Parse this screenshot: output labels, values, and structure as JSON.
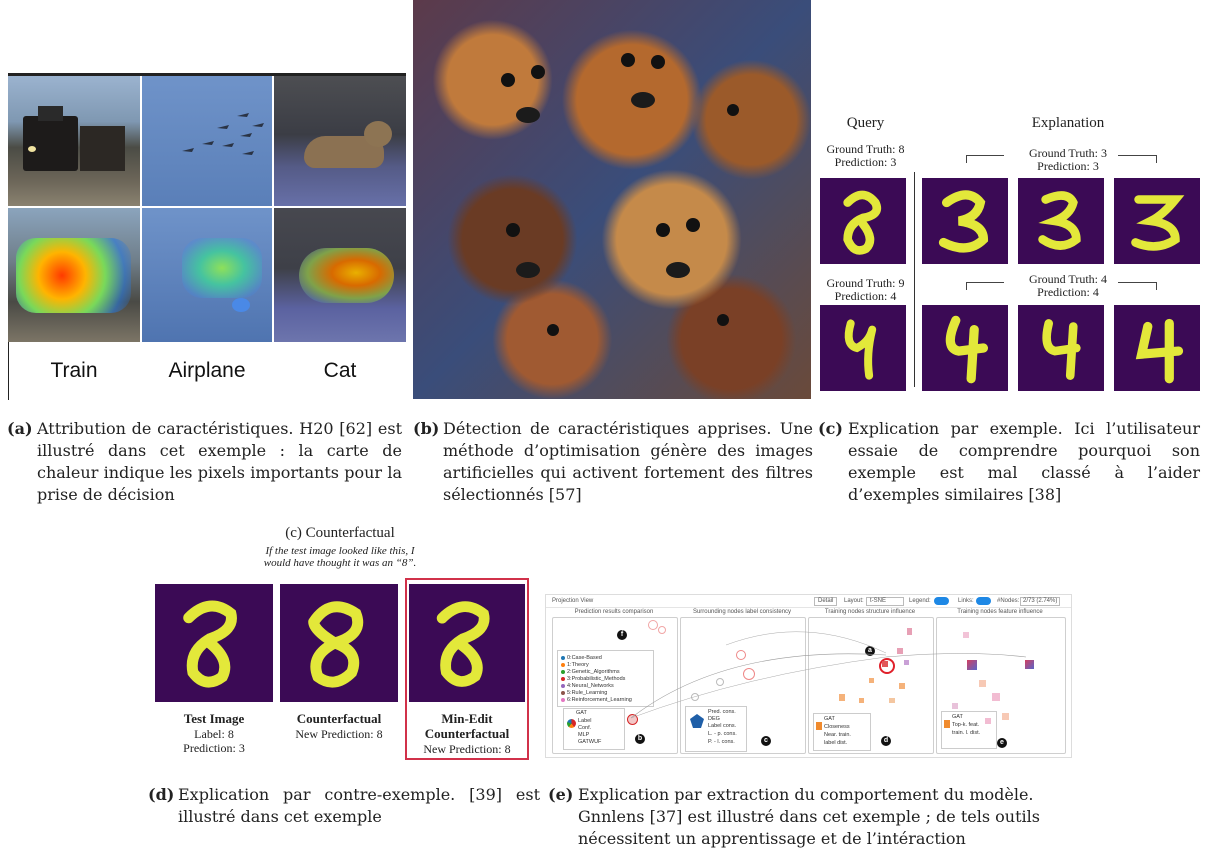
{
  "panel_a": {
    "col_labels": [
      "Train",
      "Airplane",
      "Cat"
    ],
    "caption_label": "(a)",
    "caption_text": "Attribution de caractéristiques. H20 [62] est illustré dans cet exemple : la carte de chaleur indique les pixels importants pour la prise de décision"
  },
  "panel_b": {
    "caption_label": "(b)",
    "caption_text": "Détection de caractéristiques apprises. Une méthode d’optimisation génère des images artificielles qui activent fortement des filtres sélectionnés [57]"
  },
  "panel_c": {
    "query_title": "Query",
    "explanation_title": "Explanation",
    "row1_query": [
      "Ground Truth: 8",
      "Prediction: 3"
    ],
    "row1_expl": [
      "Ground Truth: 3",
      "Prediction: 3"
    ],
    "row2_query": [
      "Ground Truth: 9",
      "Prediction: 4"
    ],
    "row2_expl": [
      "Ground Truth: 4",
      "Prediction: 4"
    ],
    "caption_label": "(c)",
    "caption_text": "Explication par exemple. Ici l’utilisateur essaie de comprendre pourquoi son exemple est mal classé à l’aider d’exemples similaires [38]"
  },
  "panel_d": {
    "title": "(c) Counterfactual",
    "subtitle_line1": "If the test image looked like this, I",
    "subtitle_line2": "would have thought it was an “8”.",
    "items": [
      {
        "title": "Test Image",
        "line1": "Label: 8",
        "line2": "Prediction: 3"
      },
      {
        "title": "Counterfactual",
        "line1": "New Prediction: 8",
        "line2": ""
      },
      {
        "title_1": "Min-Edit",
        "title_2": "Counterfactual",
        "line1": "New Prediction: 8"
      }
    ],
    "caption_label": "(d)",
    "caption_text": "Explication par contre-exemple. [39] est illustré dans cet exemple"
  },
  "panel_e": {
    "header": {
      "title": "Projection View",
      "detail": "Detail",
      "layout_label": "Layout:",
      "layout_value": "t-SNE",
      "legend_label": "Legend:",
      "links_label": "Links:",
      "nodes_label": "#Nodes:",
      "nodes_value": "2/73 (2.74%)"
    },
    "sections": [
      "Prediction results comparison",
      "Surrounding nodes label consistency",
      "Training nodes structure influence",
      "Training nodes feature influence"
    ],
    "legend_items": [
      {
        "label": "0:Case-Based",
        "color": "#1f77b4"
      },
      {
        "label": "1:Theory",
        "color": "#ff7f0e"
      },
      {
        "label": "2:Genetic_Algorithms",
        "color": "#2ca02c"
      },
      {
        "label": "3:Probabilistic_Methods",
        "color": "#d62728"
      },
      {
        "label": "4:Neural_Networks",
        "color": "#9467bd"
      },
      {
        "label": "5:Rule_Learning",
        "color": "#8c564b"
      },
      {
        "label": "6:Reinforcement_Learning",
        "color": "#e377c2"
      }
    ],
    "box_b": [
      "GAT",
      "Label",
      "Conf.",
      "MLP",
      "GATWUF"
    ],
    "box_c": [
      "Pred. cons.",
      "DEG",
      "Label cons.",
      "L. - p. cons.",
      "P. - l. cons."
    ],
    "box_d": [
      "GAT",
      "Closeness",
      "Near. train.",
      "label dist."
    ],
    "box_e": [
      "GAT",
      "Top-k. feat.",
      "train. l. dist."
    ],
    "markers": [
      "a",
      "b",
      "c",
      "d",
      "e",
      "f"
    ],
    "caption_label": "(e)",
    "caption_text": "Explication par extraction du comportement du modèle. Gnnlens [37] est illustré dans cet exemple ; de tels outils nécessitent un apprentissage et de l’intéraction"
  }
}
